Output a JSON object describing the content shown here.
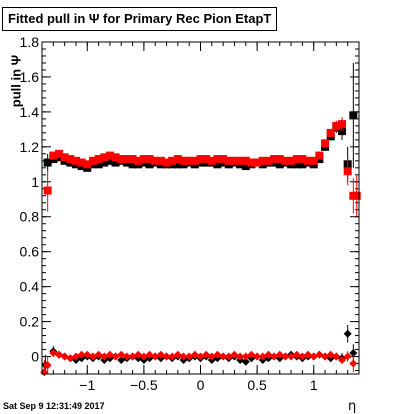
{
  "title": "Fitted pull in Ψ  for Primary Rec Pion EtapT",
  "datestamp": "Sat Sep  9 12:31:49 2017",
  "chart_data": {
    "type": "scatter",
    "title": "Fitted pull in Ψ  for Primary Rec Pion EtapT",
    "xlabel": "η",
    "ylabel": "pull in  Ψ",
    "xlim": [
      -1.4,
      1.4
    ],
    "ylim": [
      -0.1,
      1.8
    ],
    "xticks": [
      -1,
      -0.5,
      0,
      0.5,
      1
    ],
    "xtick_labels": [
      "−1",
      "−0.5",
      "0",
      "0.5",
      "1"
    ],
    "yticks": [
      0,
      0.2,
      0.4,
      0.6,
      0.8,
      1,
      1.2,
      1.4,
      1.6,
      1.8
    ],
    "ytick_labels": [
      "0",
      "0.2",
      "0.4",
      "0.6",
      "0.8",
      "1",
      "1.2",
      "1.4",
      "1.6",
      "1.8"
    ],
    "grid": false,
    "legend": "none",
    "series": [
      {
        "role": "width",
        "color": "#000000",
        "marker": "square",
        "x": [
          -1.35,
          -1.3,
          -1.25,
          -1.2,
          -1.15,
          -1.1,
          -1.05,
          -1.0,
          -0.95,
          -0.9,
          -0.85,
          -0.8,
          -0.75,
          -0.7,
          -0.65,
          -0.6,
          -0.55,
          -0.5,
          -0.45,
          -0.4,
          -0.35,
          -0.3,
          -0.25,
          -0.2,
          -0.15,
          -0.1,
          -0.05,
          0.0,
          0.05,
          0.1,
          0.15,
          0.2,
          0.25,
          0.3,
          0.35,
          0.4,
          0.45,
          0.5,
          0.55,
          0.6,
          0.65,
          0.7,
          0.75,
          0.8,
          0.85,
          0.9,
          0.95,
          1.0,
          1.05,
          1.1,
          1.15,
          1.2,
          1.25,
          1.3,
          1.35
        ],
        "y": [
          1.11,
          1.13,
          1.14,
          1.12,
          1.11,
          1.1,
          1.09,
          1.08,
          1.1,
          1.1,
          1.11,
          1.12,
          1.11,
          1.12,
          1.11,
          1.1,
          1.1,
          1.11,
          1.1,
          1.11,
          1.1,
          1.1,
          1.1,
          1.1,
          1.1,
          1.11,
          1.1,
          1.11,
          1.11,
          1.11,
          1.1,
          1.11,
          1.1,
          1.11,
          1.1,
          1.09,
          1.1,
          1.11,
          1.1,
          1.11,
          1.11,
          1.1,
          1.11,
          1.1,
          1.1,
          1.1,
          1.11,
          1.1,
          1.13,
          1.2,
          1.26,
          1.31,
          1.29,
          1.1,
          1.38
        ],
        "yerr": [
          0.05,
          0.02,
          0.01,
          0.01,
          0.01,
          0.01,
          0.01,
          0.01,
          0.01,
          0.01,
          0.01,
          0.01,
          0.01,
          0.01,
          0.01,
          0.01,
          0.01,
          0.01,
          0.01,
          0.01,
          0.01,
          0.01,
          0.01,
          0.01,
          0.01,
          0.01,
          0.01,
          0.01,
          0.01,
          0.01,
          0.01,
          0.01,
          0.01,
          0.01,
          0.01,
          0.01,
          0.01,
          0.01,
          0.01,
          0.01,
          0.01,
          0.01,
          0.01,
          0.01,
          0.01,
          0.01,
          0.01,
          0.01,
          0.02,
          0.02,
          0.02,
          0.03,
          0.05,
          0.1,
          0.3
        ]
      },
      {
        "role": "width",
        "color": "#ff0000",
        "marker": "square",
        "x": [
          -1.35,
          -1.3,
          -1.25,
          -1.2,
          -1.15,
          -1.1,
          -1.05,
          -1.0,
          -0.95,
          -0.9,
          -0.85,
          -0.8,
          -0.75,
          -0.7,
          -0.65,
          -0.6,
          -0.55,
          -0.5,
          -0.45,
          -0.4,
          -0.35,
          -0.3,
          -0.25,
          -0.2,
          -0.15,
          -0.1,
          -0.05,
          0.0,
          0.05,
          0.1,
          0.15,
          0.2,
          0.25,
          0.3,
          0.35,
          0.4,
          0.45,
          0.5,
          0.55,
          0.6,
          0.65,
          0.7,
          0.75,
          0.8,
          0.85,
          0.9,
          0.95,
          1.0,
          1.05,
          1.1,
          1.15,
          1.2,
          1.25,
          1.3,
          1.35,
          1.38
        ],
        "y": [
          0.95,
          1.15,
          1.16,
          1.14,
          1.13,
          1.12,
          1.11,
          1.1,
          1.12,
          1.13,
          1.14,
          1.15,
          1.14,
          1.13,
          1.13,
          1.13,
          1.12,
          1.13,
          1.13,
          1.12,
          1.12,
          1.11,
          1.12,
          1.13,
          1.12,
          1.12,
          1.12,
          1.13,
          1.13,
          1.12,
          1.13,
          1.13,
          1.12,
          1.12,
          1.12,
          1.12,
          1.11,
          1.11,
          1.12,
          1.12,
          1.13,
          1.13,
          1.12,
          1.12,
          1.13,
          1.13,
          1.12,
          1.12,
          1.15,
          1.22,
          1.28,
          1.32,
          1.33,
          1.06,
          0.92,
          0.92
        ],
        "yerr": [
          0.12,
          0.02,
          0.01,
          0.01,
          0.01,
          0.01,
          0.01,
          0.01,
          0.01,
          0.01,
          0.01,
          0.01,
          0.01,
          0.01,
          0.01,
          0.01,
          0.01,
          0.01,
          0.01,
          0.01,
          0.01,
          0.01,
          0.01,
          0.01,
          0.01,
          0.01,
          0.01,
          0.01,
          0.01,
          0.01,
          0.01,
          0.01,
          0.01,
          0.01,
          0.01,
          0.01,
          0.01,
          0.01,
          0.01,
          0.01,
          0.01,
          0.01,
          0.01,
          0.01,
          0.01,
          0.01,
          0.01,
          0.01,
          0.02,
          0.02,
          0.02,
          0.03,
          0.04,
          0.08,
          0.1,
          0.12
        ]
      },
      {
        "role": "mean",
        "color": "#000000",
        "marker": "diamond",
        "x": [
          -1.37,
          -1.3,
          -1.25,
          -1.2,
          -1.15,
          -1.1,
          -1.05,
          -1.0,
          -0.95,
          -0.9,
          -0.85,
          -0.8,
          -0.75,
          -0.7,
          -0.65,
          -0.6,
          -0.55,
          -0.5,
          -0.45,
          -0.4,
          -0.35,
          -0.3,
          -0.25,
          -0.2,
          -0.15,
          -0.1,
          -0.05,
          0.0,
          0.05,
          0.1,
          0.15,
          0.2,
          0.25,
          0.3,
          0.35,
          0.4,
          0.45,
          0.5,
          0.55,
          0.6,
          0.65,
          0.7,
          0.75,
          0.8,
          0.85,
          0.9,
          0.95,
          1.0,
          1.05,
          1.1,
          1.15,
          1.2,
          1.25,
          1.3,
          1.35
        ],
        "y": [
          -0.05,
          0.03,
          0.01,
          0.0,
          -0.01,
          -0.02,
          -0.01,
          0.0,
          -0.01,
          0.0,
          -0.02,
          -0.01,
          0.0,
          -0.02,
          -0.01,
          0.0,
          -0.01,
          -0.02,
          -0.01,
          0.0,
          -0.01,
          0.0,
          -0.01,
          0.0,
          -0.02,
          -0.01,
          0.0,
          -0.01,
          0.0,
          -0.02,
          -0.01,
          0.0,
          -0.01,
          0.0,
          -0.02,
          -0.03,
          -0.01,
          0.0,
          -0.02,
          -0.01,
          0.0,
          -0.01,
          0.0,
          0.01,
          0.0,
          -0.01,
          0.0,
          0.0,
          0.01,
          0.0,
          -0.01,
          0.0,
          -0.01,
          0.13,
          0.02
        ],
        "yerr": [
          0.06,
          0.03,
          0.01,
          0.01,
          0.01,
          0.01,
          0.01,
          0.01,
          0.01,
          0.01,
          0.01,
          0.01,
          0.01,
          0.01,
          0.01,
          0.01,
          0.01,
          0.01,
          0.01,
          0.01,
          0.01,
          0.01,
          0.01,
          0.01,
          0.01,
          0.01,
          0.01,
          0.01,
          0.01,
          0.01,
          0.01,
          0.01,
          0.01,
          0.01,
          0.01,
          0.01,
          0.01,
          0.01,
          0.01,
          0.01,
          0.01,
          0.01,
          0.01,
          0.01,
          0.01,
          0.01,
          0.01,
          0.01,
          0.02,
          0.02,
          0.02,
          0.02,
          0.03,
          0.05,
          0.05
        ]
      },
      {
        "role": "mean",
        "color": "#ff0000",
        "marker": "diamond",
        "x": [
          -1.38,
          -1.35,
          -1.3,
          -1.25,
          -1.2,
          -1.15,
          -1.1,
          -1.05,
          -1.0,
          -0.95,
          -0.9,
          -0.85,
          -0.8,
          -0.75,
          -0.7,
          -0.65,
          -0.6,
          -0.55,
          -0.5,
          -0.45,
          -0.4,
          -0.35,
          -0.3,
          -0.25,
          -0.2,
          -0.15,
          -0.1,
          -0.05,
          0.0,
          0.05,
          0.1,
          0.15,
          0.2,
          0.25,
          0.3,
          0.35,
          0.4,
          0.45,
          0.5,
          0.55,
          0.6,
          0.65,
          0.7,
          0.75,
          0.8,
          0.85,
          0.9,
          0.95,
          1.0,
          1.05,
          1.1,
          1.15,
          1.2,
          1.25,
          1.3,
          1.35
        ],
        "y": [
          -0.09,
          -0.05,
          0.02,
          0.01,
          0.0,
          -0.01,
          0.0,
          0.01,
          0.01,
          0.0,
          0.01,
          0.0,
          0.01,
          0.0,
          0.01,
          0.0,
          0.0,
          0.01,
          0.0,
          0.01,
          0.0,
          0.01,
          0.0,
          0.0,
          0.01,
          0.0,
          0.0,
          0.01,
          0.0,
          0.01,
          0.0,
          0.01,
          0.0,
          0.0,
          0.01,
          0.0,
          0.0,
          0.01,
          0.0,
          0.0,
          0.01,
          0.0,
          0.01,
          0.0,
          0.0,
          0.01,
          0.0,
          0.01,
          0.0,
          0.01,
          0.0,
          0.01,
          0.0,
          -0.02,
          0.0,
          -0.04
        ],
        "yerr": [
          0.07,
          0.05,
          0.02,
          0.01,
          0.01,
          0.01,
          0.01,
          0.01,
          0.01,
          0.01,
          0.01,
          0.01,
          0.01,
          0.01,
          0.01,
          0.01,
          0.01,
          0.01,
          0.01,
          0.01,
          0.01,
          0.01,
          0.01,
          0.01,
          0.01,
          0.01,
          0.01,
          0.01,
          0.01,
          0.01,
          0.01,
          0.01,
          0.01,
          0.01,
          0.01,
          0.01,
          0.01,
          0.01,
          0.01,
          0.01,
          0.01,
          0.01,
          0.01,
          0.01,
          0.01,
          0.01,
          0.01,
          0.01,
          0.01,
          0.01,
          0.02,
          0.02,
          0.02,
          0.02,
          0.03,
          0.05
        ]
      }
    ]
  }
}
